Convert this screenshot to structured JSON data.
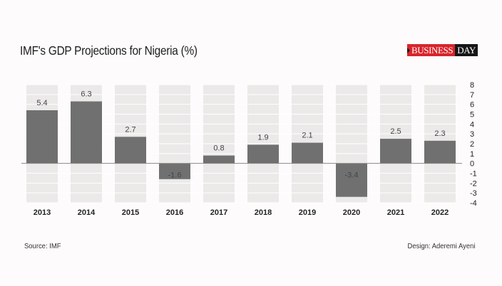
{
  "header": {
    "title": "IMF's GDP Projections for Nigeria (%)",
    "logo_left": "BUSINESS",
    "logo_right": "DAY"
  },
  "footer": {
    "source": "Source: IMF",
    "credit": "Design: Aderemi Ayeni"
  },
  "chart_data": {
    "type": "bar",
    "title": "IMF's GDP Projections for Nigeria (%)",
    "xlabel": "",
    "ylabel": "",
    "categories": [
      "2013",
      "2014",
      "2015",
      "2016",
      "2017",
      "2018",
      "2019",
      "2020",
      "2021",
      "2022"
    ],
    "values": [
      5.4,
      6.3,
      2.7,
      -1.6,
      0.8,
      1.9,
      2.1,
      -3.4,
      2.5,
      2.3
    ],
    "data_labels": [
      "5.4",
      "6.3",
      "2.7",
      "-1.6",
      "0.8",
      "1.9",
      "2.1",
      "-3.4",
      "2.5",
      "2.3"
    ],
    "ylim": [
      -4,
      8
    ],
    "yticks": [
      8,
      7,
      6,
      5,
      4,
      3,
      2,
      1,
      0,
      -1,
      -2,
      -3,
      -4
    ],
    "y_axis_side": "right",
    "grid": true,
    "legend": "none",
    "colors": {
      "bar": "#707070",
      "stripe": "#ece9e9",
      "background": "#fdfbfb",
      "grid": "#ffffff",
      "zero_line": "#888888"
    }
  }
}
